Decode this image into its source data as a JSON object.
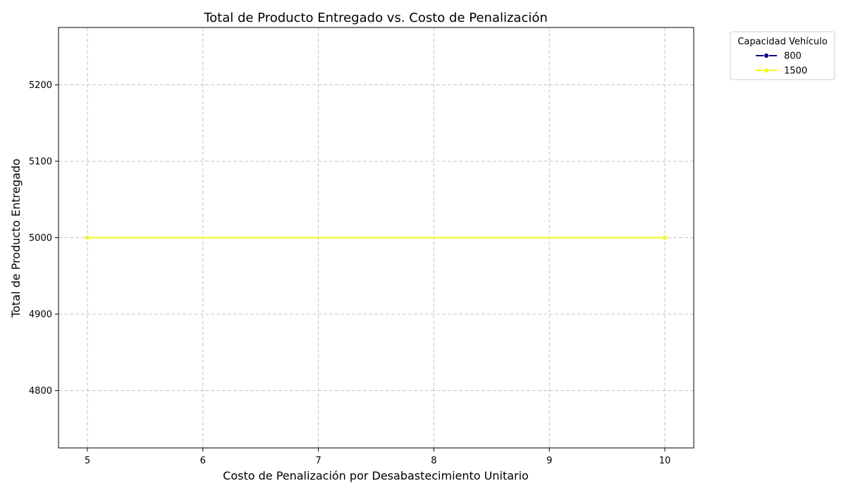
{
  "chart_data": {
    "type": "line",
    "title": "Total de Producto Entregado vs. Costo de Penalización",
    "xlabel": "Costo de Penalización por Desabastecimiento Unitario",
    "ylabel": "Total de Producto Entregado",
    "xlim": [
      4.75,
      10.25
    ],
    "ylim": [
      4725,
      5275
    ],
    "xticks": [
      5,
      6,
      7,
      8,
      9,
      10
    ],
    "yticks": [
      4800,
      4900,
      5000,
      5100,
      5200
    ],
    "grid": true,
    "legend": {
      "title": "Capacidad Vehículo",
      "placement": "outside-top-right"
    },
    "series": [
      {
        "name": "800",
        "color": "#0d0887",
        "marker": "circle",
        "x": [
          5,
          10
        ],
        "y": [
          5000,
          5000
        ]
      },
      {
        "name": "1500",
        "color": "#f0f921",
        "marker": "circle",
        "x": [
          5,
          10
        ],
        "y": [
          5000,
          5000
        ]
      }
    ]
  }
}
